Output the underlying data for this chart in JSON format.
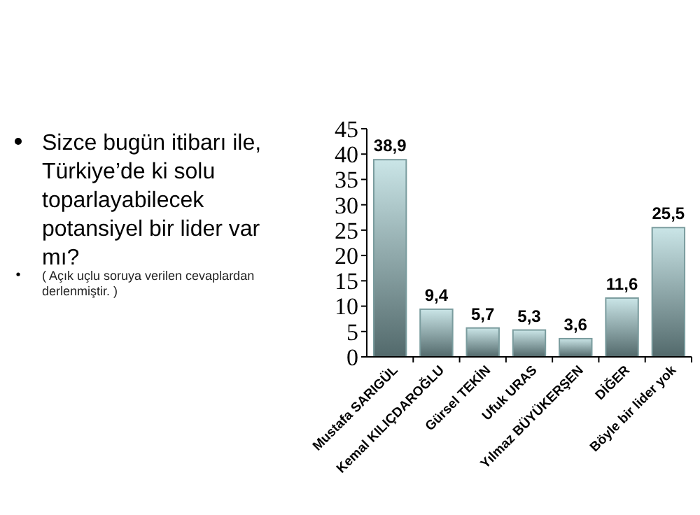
{
  "chart_data": {
    "type": "bar",
    "title": "Sizce bugün itibarı ile, Türkiye’de ki solu toparlayabilecek potansiyel bir lider var mı?",
    "annotations": [
      "( Açık uçlu soruya verilen cevaplardan derlenmiştir. )"
    ],
    "categories": [
      "Mustafa SARIGÜL",
      "Kemal KILIÇDAROĞLU",
      "Gürsel TEKİN",
      "Ufuk URAS",
      "Yılmaz BÜYÜKERŞEN",
      "DİĞER",
      "Böyle bir lider yok"
    ],
    "values": [
      38.9,
      9.4,
      5.7,
      5.3,
      3.6,
      11.6,
      25.5
    ],
    "value_labels": [
      "38,9",
      "9,4",
      "5,7",
      "5,3",
      "3,6",
      "11,6",
      "25,5"
    ],
    "color": "#7a9c9e",
    "ylim": [
      0,
      45
    ],
    "yticks": [
      0,
      5,
      10,
      15,
      20,
      25,
      30,
      35,
      40,
      45
    ],
    "grid": false
  }
}
